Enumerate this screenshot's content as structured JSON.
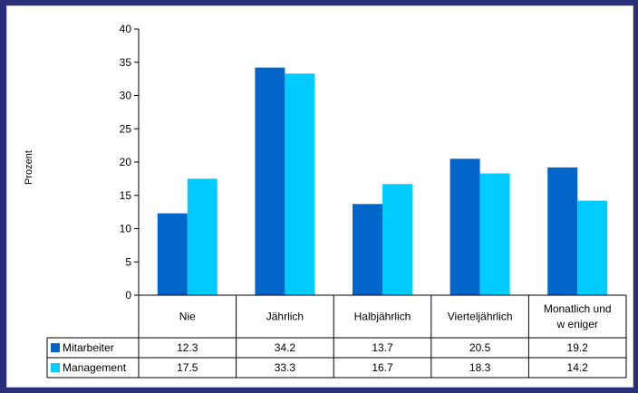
{
  "chart_data": {
    "type": "bar",
    "title": "",
    "xlabel": "",
    "ylabel": "Prozent",
    "ylim": [
      0,
      40
    ],
    "yticks": [
      0,
      5,
      10,
      15,
      20,
      25,
      30,
      35,
      40
    ],
    "grid": false,
    "legend": "in data table (left column)",
    "categories": [
      "Nie",
      "Jährlich",
      "Halbjährlich",
      "Vierteljährlich",
      "Monatlich und w eniger"
    ],
    "series": [
      {
        "name": "Mitarbeiter",
        "color": "#0066cc",
        "values": [
          12.3,
          34.2,
          13.7,
          20.5,
          19.2
        ]
      },
      {
        "name": "Management",
        "color": "#00ccff",
        "values": [
          17.5,
          33.3,
          16.7,
          18.3,
          14.2
        ]
      }
    ],
    "table": {
      "rows": [
        {
          "name": "Mitarbeiter",
          "values": [
            "12.3",
            "34.2",
            "13.7",
            "20.5",
            "19.2"
          ]
        },
        {
          "name": "Management",
          "values": [
            "17.5",
            "33.3",
            "16.7",
            "18.3",
            "14.2"
          ]
        }
      ]
    }
  },
  "colors": {
    "background": "#2a2f7a",
    "panel": "#ffffff"
  }
}
